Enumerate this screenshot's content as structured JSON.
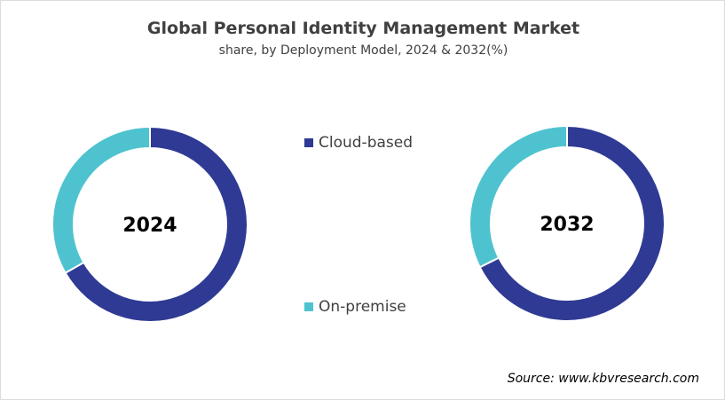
{
  "chart_data": {
    "type": "pie",
    "subtype": "donut",
    "title": "Global Personal Identity Management Market",
    "subtitle": "share, by Deployment Model, 2024 & 2032(%)",
    "categories": [
      "Cloud-based",
      "On-premise"
    ],
    "colors": [
      "#2E3A93",
      "#4EC3CF"
    ],
    "charts": [
      {
        "label": "2024",
        "values": [
          66.7,
          33.3
        ]
      },
      {
        "label": "2032",
        "values": [
          67.6,
          32.4
        ]
      }
    ],
    "legend_placement": "center",
    "source": "Source: www.kbvresearch.com"
  }
}
